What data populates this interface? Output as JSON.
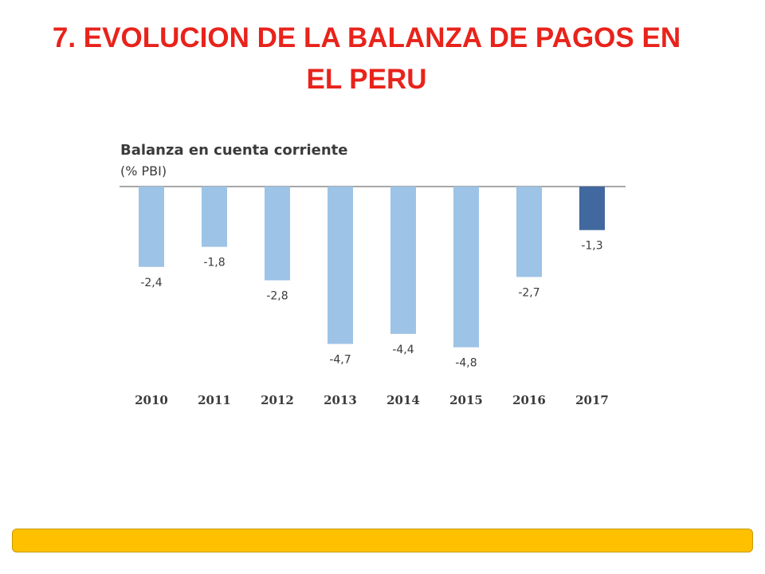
{
  "slide": {
    "title": "7. EVOLUCION DE LA BALANZA DE PAGOS EN EL PERU"
  },
  "chart_data": {
    "type": "bar",
    "title": "Balanza en cuenta corriente",
    "subtitle": "(% PBI)",
    "categories": [
      "2010",
      "2011",
      "2012",
      "2013",
      "2014",
      "2015",
      "2016",
      "2017"
    ],
    "values": [
      -2.4,
      -1.8,
      -2.8,
      -4.7,
      -4.4,
      -4.8,
      -2.7,
      -1.3
    ],
    "data_labels": [
      "-2,4",
      "-1,8",
      "-2,8",
      "-4,7",
      "-4,4",
      "-4,8",
      "-2,7",
      "-1,3"
    ],
    "ylim": [
      -5,
      0
    ],
    "grid": false,
    "legend": "none",
    "colors": {
      "bar": "#9dc3e6",
      "highlight_bar": "#41689f",
      "axis": "#8c8c8c",
      "text": "#3b3b3b"
    },
    "highlight_category": "2017"
  },
  "footer": {
    "bar_color": "#ffc000"
  }
}
